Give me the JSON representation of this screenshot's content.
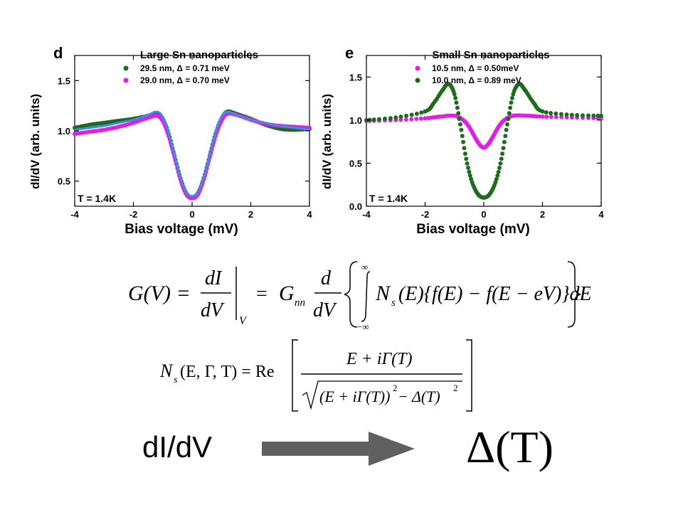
{
  "chart_data": [
    {
      "type": "scatter",
      "panel_letter": "d",
      "title": "Large Sn nanoparticles",
      "xlabel": "Bias voltage (mV)",
      "ylabel": "dI/dV (arb. units)",
      "xlim": [
        -4,
        4
      ],
      "ylim": [
        0.25,
        1.75
      ],
      "xticks": [
        -4,
        -2,
        0,
        2,
        4
      ],
      "yticks": [
        0.5,
        1.0,
        1.5
      ],
      "xtick_labels": [
        "-4",
        "-2",
        "0",
        "2",
        "4"
      ],
      "ytick_labels": [
        "0.5",
        "1.0",
        "1.5"
      ],
      "annotation": "T = 1.4K",
      "legend_position": "top-center",
      "series": [
        {
          "name": "29.5 nm, Δ = 0.71 meV",
          "color": "#1e6b1e",
          "x": [
            -4.0,
            -3.5,
            -3.0,
            -2.5,
            -2.0,
            -1.5,
            -1.2,
            -1.0,
            -0.8,
            -0.6,
            -0.4,
            -0.2,
            0.0,
            0.2,
            0.4,
            0.6,
            0.8,
            1.0,
            1.2,
            1.5,
            2.0,
            2.5,
            3.0,
            3.5,
            4.0
          ],
          "y": [
            1.03,
            1.06,
            1.08,
            1.1,
            1.12,
            1.15,
            1.17,
            1.12,
            0.97,
            0.75,
            0.53,
            0.38,
            0.34,
            0.38,
            0.53,
            0.75,
            0.97,
            1.12,
            1.19,
            1.17,
            1.12,
            1.06,
            1.02,
            1.01,
            1.02
          ]
        },
        {
          "name": "29.0 nm, Δ = 0.70 meV",
          "color": "#e020e0",
          "x": [
            -4.0,
            -3.5,
            -3.0,
            -2.5,
            -2.0,
            -1.5,
            -1.2,
            -1.0,
            -0.8,
            -0.6,
            -0.4,
            -0.2,
            0.0,
            0.2,
            0.4,
            0.6,
            0.8,
            1.0,
            1.2,
            1.5,
            2.0,
            2.5,
            3.0,
            3.5,
            4.0
          ],
          "y": [
            0.97,
            0.99,
            1.01,
            1.04,
            1.08,
            1.13,
            1.15,
            1.1,
            0.95,
            0.74,
            0.52,
            0.37,
            0.33,
            0.37,
            0.52,
            0.74,
            0.95,
            1.1,
            1.17,
            1.16,
            1.11,
            1.07,
            1.05,
            1.04,
            1.03
          ]
        },
        {
          "name": "",
          "color": "#3a8ee6",
          "mark": "line",
          "x": [
            -4.0,
            -3.5,
            -3.0,
            -2.5,
            -2.0,
            -1.5,
            -1.2,
            -1.0,
            -0.8,
            -0.6,
            -0.4,
            -0.2,
            0.0,
            0.2,
            0.4,
            0.6,
            0.8,
            1.0,
            1.2,
            1.5,
            2.0,
            2.5,
            3.0,
            3.5,
            4.0
          ],
          "y": [
            1.01,
            1.03,
            1.05,
            1.08,
            1.11,
            1.16,
            1.19,
            1.14,
            0.98,
            0.76,
            0.54,
            0.39,
            0.35,
            0.39,
            0.54,
            0.76,
            0.98,
            1.14,
            1.19,
            1.16,
            1.11,
            1.08,
            1.05,
            1.03,
            1.01
          ]
        }
      ]
    },
    {
      "type": "scatter",
      "panel_letter": "e",
      "title": "Small Sn nanoparticles",
      "xlabel": "Bias voltage (mV)",
      "ylabel": "dI/dV (arb. units)",
      "xlim": [
        -4,
        4
      ],
      "ylim": [
        0.0,
        1.75
      ],
      "xticks": [
        -4,
        -2,
        0,
        2,
        4
      ],
      "yticks": [
        0.0,
        0.5,
        1.0,
        1.5
      ],
      "xtick_labels": [
        "-4",
        "-2",
        "0",
        "2",
        "4"
      ],
      "ytick_labels": [
        "0.0",
        "0.5",
        "1.0",
        "1.5"
      ],
      "annotation": "T = 1.4K",
      "legend_position": "top-center",
      "series": [
        {
          "name": "10.5 nm, Δ = 0.50meV",
          "color": "#e020e0",
          "x": [
            -4.0,
            -3.0,
            -2.0,
            -1.5,
            -1.0,
            -0.7,
            -0.5,
            -0.3,
            -0.15,
            0.0,
            0.15,
            0.3,
            0.5,
            0.7,
            1.0,
            1.5,
            2.0,
            3.0,
            4.0
          ],
          "y": [
            0.99,
            1.0,
            1.02,
            1.04,
            1.05,
            1.0,
            0.92,
            0.8,
            0.72,
            0.68,
            0.72,
            0.8,
            0.92,
            1.0,
            1.05,
            1.05,
            1.04,
            1.03,
            1.02
          ]
        },
        {
          "name": "10.0 nm, Δ = 0.89 meV",
          "color": "#1e6b1e",
          "x": [
            -4.0,
            -3.0,
            -2.0,
            -1.7,
            -1.4,
            -1.2,
            -1.0,
            -0.8,
            -0.6,
            -0.4,
            -0.2,
            0.0,
            0.2,
            0.4,
            0.6,
            0.8,
            1.0,
            1.2,
            1.4,
            1.7,
            2.0,
            3.0,
            4.0
          ],
          "y": [
            1.0,
            1.03,
            1.1,
            1.2,
            1.35,
            1.42,
            1.3,
            0.95,
            0.55,
            0.28,
            0.14,
            0.1,
            0.14,
            0.28,
            0.55,
            0.95,
            1.3,
            1.42,
            1.35,
            1.2,
            1.1,
            1.06,
            1.05
          ]
        }
      ]
    }
  ],
  "equations": {
    "eq1_lhs": "G(V) =",
    "eq1_dI": "dI",
    "eq1_dV": "dV",
    "eq1_sub_V": "V",
    "eq1_eq": "=",
    "eq1_G": "G",
    "eq1_Gsub": "nn",
    "eq1_d": "d",
    "eq1_dV2": "dV",
    "eq1_inf_top": "∞",
    "eq1_inf_bot": "−∞",
    "eq1_body": "N",
    "eq1_body_sub": "s",
    "eq1_body_rest": "(E){f(E) − f(E − eV)}dE",
    "eq2_lhs": "N",
    "eq2_lhs_sub": "s",
    "eq2_lhs_rest": "(E, Γ, T) = Re",
    "eq2_num": "E + iΓ(T)",
    "eq2_den": "(E + iΓ(T))",
    "eq2_den_sup": "2",
    "eq2_den_rest": " − Δ(T)",
    "eq2_den_sup2": "2"
  },
  "bottom": {
    "left_label": "dI/dV",
    "right_label": "Δ(T)"
  },
  "colors": {
    "arrow": "#606060",
    "fit_line": "#3a8ee6",
    "green": "#1e6b1e",
    "magenta": "#e020e0"
  }
}
